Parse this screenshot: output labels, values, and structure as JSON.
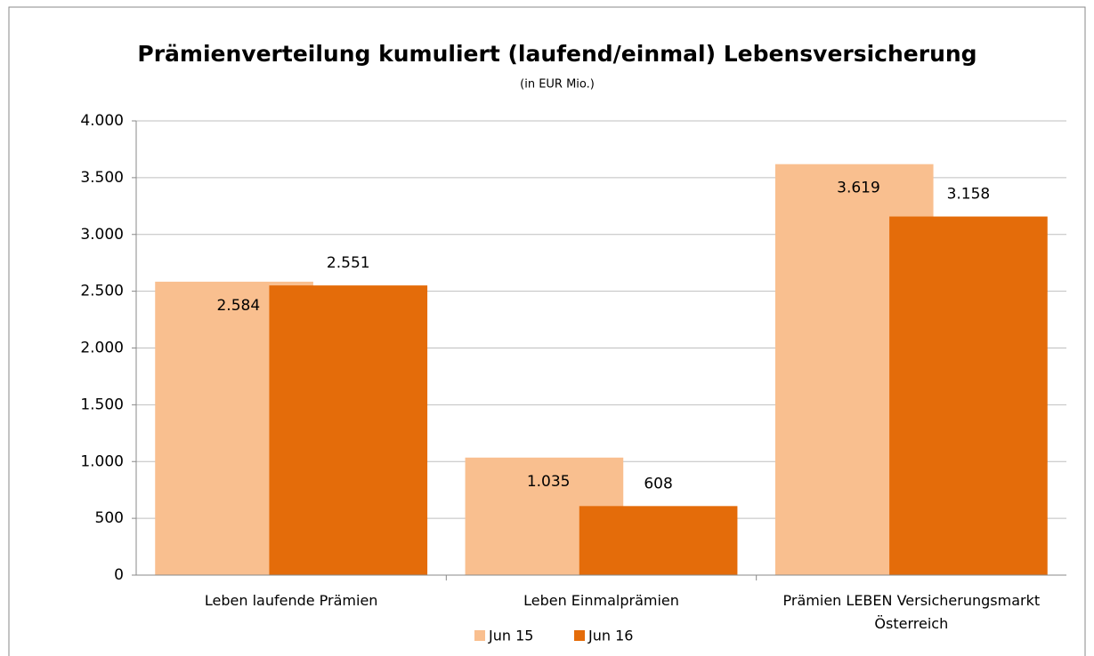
{
  "chart_data": {
    "type": "bar",
    "title": "Prämienverteilung  kumuliert (laufend/einmal) Lebensversicherung",
    "subtitle": "(in EUR Mio.)",
    "categories": [
      "Leben laufende Prämien",
      "Leben Einmalprämien",
      "Prämien LEBEN Versicherungsmarkt Österreich"
    ],
    "series": [
      {
        "name": "Jun 15",
        "color": "#f9bf8f",
        "values": [
          2584,
          1035,
          3619
        ],
        "value_labels": [
          "2.584",
          "1.035",
          "3.619"
        ]
      },
      {
        "name": "Jun 16",
        "color": "#e46c0a",
        "values": [
          2551,
          608,
          3158
        ],
        "value_labels": [
          "2.551",
          "608",
          "3.158"
        ]
      }
    ],
    "ylim": [
      0,
      4000
    ],
    "yticks": [
      0,
      500,
      {
        "value": 1000,
        "label": "1.000"
      },
      {
        "value": 1500,
        "label": "1.500"
      },
      {
        "value": 2000,
        "label": "2.000"
      },
      {
        "value": 2500,
        "label": "2.500"
      },
      {
        "value": 3000,
        "label": "3.000"
      },
      {
        "value": 3500,
        "label": "3.500"
      },
      {
        "value": 4000,
        "label": "4.000"
      }
    ],
    "grid": true,
    "legend": "bottom"
  }
}
